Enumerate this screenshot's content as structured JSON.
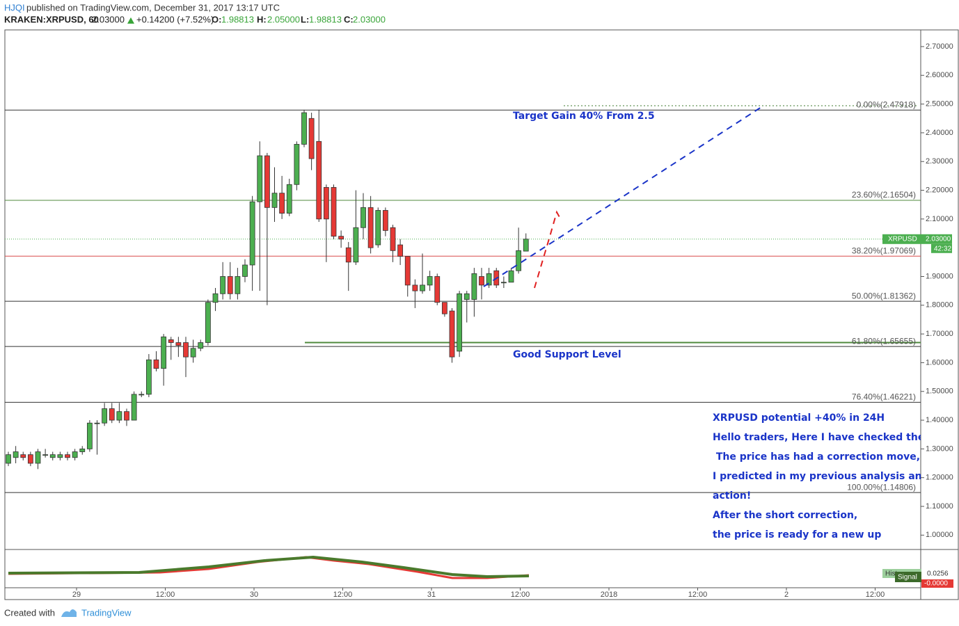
{
  "header": {
    "user": "HJQI",
    "published": "published on TradingView.com, December 31, 2017 13:17 UTC",
    "symbol": "KRAKEN:XRPUSD, 60",
    "last": "2.03000",
    "change": "+0.14200 (+7.52%)",
    "o_label": "O:",
    "o": "1.98813",
    "h_label": "H:",
    "h": "2.05000",
    "l_label": "L:",
    "l": "1.98813",
    "c_label": "C:",
    "c": "2.03000"
  },
  "chart_data": {
    "type": "candlestick",
    "up_color": "#4caf50",
    "down_color": "#e53935",
    "ylim": [
      0.95,
      2.758
    ],
    "yticks": [
      {
        "value": 1.0,
        "label": "1.00000"
      },
      {
        "value": 1.1,
        "label": "1.10000"
      },
      {
        "value": 1.2,
        "label": "1.20000"
      },
      {
        "value": 1.3,
        "label": "1.30000"
      },
      {
        "value": 1.4,
        "label": "1.40000"
      },
      {
        "value": 1.5,
        "label": "1.50000"
      },
      {
        "value": 1.6,
        "label": "1.60000"
      },
      {
        "value": 1.7,
        "label": "1.70000"
      },
      {
        "value": 1.8,
        "label": "1.80000"
      },
      {
        "value": 1.9,
        "label": "1.90000"
      },
      {
        "value": 2.1,
        "label": "2.10000"
      },
      {
        "value": 2.2,
        "label": "2.20000"
      },
      {
        "value": 2.3,
        "label": "2.30000"
      },
      {
        "value": 2.4,
        "label": "2.40000"
      },
      {
        "value": 2.5,
        "label": "2.50000"
      },
      {
        "value": 2.6,
        "label": "2.60000"
      },
      {
        "value": 2.7,
        "label": "2.70000"
      }
    ],
    "x_axis_labels": [
      "29",
      "12:00",
      "30",
      "12:00",
      "31",
      "12:00",
      "2018",
      "12:00",
      "2",
      "12:00"
    ],
    "series": {
      "open": [
        1.25,
        1.27,
        1.28,
        1.28,
        1.25,
        1.28,
        1.27,
        1.27,
        1.28,
        1.27,
        1.29,
        1.3,
        1.39,
        1.39,
        1.44,
        1.4,
        1.43,
        1.4,
        1.49,
        1.49,
        1.61,
        1.58,
        1.68,
        1.67,
        1.67,
        1.62,
        1.65,
        1.67,
        1.81,
        1.84,
        1.9,
        1.84,
        1.9,
        1.94,
        2.16,
        2.32,
        2.14,
        2.19,
        2.12,
        2.22,
        2.36,
        2.45,
        2.37,
        2.21,
        2.21,
        2.04,
        2.0,
        1.95,
        2.07,
        2.14,
        2.01,
        2.13,
        2.07,
        2.01,
        1.97,
        1.87,
        1.85,
        1.87,
        1.9,
        1.81,
        1.78,
        1.64,
        1.82,
        1.82,
        1.9,
        1.87,
        1.92,
        1.88,
        1.88,
        1.92,
        1.98813
      ],
      "high": [
        1.29,
        1.31,
        1.29,
        1.29,
        1.3,
        1.3,
        1.29,
        1.29,
        1.29,
        1.3,
        1.31,
        1.4,
        1.4,
        1.46,
        1.46,
        1.46,
        1.44,
        1.5,
        1.5,
        1.63,
        1.64,
        1.7,
        1.69,
        1.69,
        1.69,
        1.68,
        1.68,
        1.82,
        1.86,
        1.95,
        1.95,
        1.93,
        1.96,
        2.18,
        2.37,
        2.33,
        2.28,
        2.25,
        2.24,
        2.37,
        2.48,
        2.47,
        2.48,
        2.22,
        2.22,
        2.06,
        2.02,
        2.2,
        2.19,
        2.18,
        2.14,
        2.14,
        2.08,
        2.03,
        1.97,
        1.89,
        1.98,
        1.92,
        1.91,
        1.81,
        1.79,
        1.85,
        1.85,
        1.93,
        1.93,
        1.93,
        1.93,
        1.9,
        1.93,
        2.07,
        2.05
      ],
      "low": [
        1.24,
        1.25,
        1.26,
        1.24,
        1.23,
        1.27,
        1.26,
        1.26,
        1.26,
        1.26,
        1.28,
        1.29,
        1.28,
        1.38,
        1.39,
        1.39,
        1.38,
        1.4,
        1.48,
        1.48,
        1.57,
        1.52,
        1.61,
        1.62,
        1.55,
        1.6,
        1.64,
        1.66,
        1.78,
        1.82,
        1.82,
        1.82,
        1.88,
        1.85,
        1.85,
        1.8,
        2.09,
        2.1,
        2.11,
        2.2,
        2.35,
        2.27,
        2.09,
        1.95,
        2.03,
        2.0,
        1.85,
        1.94,
        2.03,
        1.98,
        2.0,
        2.04,
        1.95,
        1.94,
        1.83,
        1.79,
        1.84,
        1.85,
        1.8,
        1.76,
        1.6,
        1.62,
        1.74,
        1.76,
        1.82,
        1.86,
        1.86,
        1.86,
        1.88,
        1.91,
        1.98813
      ],
      "close": [
        1.28,
        1.29,
        1.27,
        1.25,
        1.29,
        1.28,
        1.28,
        1.28,
        1.27,
        1.29,
        1.3,
        1.39,
        1.39,
        1.44,
        1.4,
        1.43,
        1.4,
        1.49,
        1.49,
        1.61,
        1.58,
        1.69,
        1.67,
        1.66,
        1.62,
        1.65,
        1.67,
        1.81,
        1.84,
        1.9,
        1.84,
        1.9,
        1.94,
        2.16,
        2.32,
        2.14,
        2.19,
        2.12,
        2.22,
        2.36,
        2.47,
        2.31,
        2.1,
        2.1,
        2.04,
        2.03,
        1.95,
        2.07,
        2.14,
        2.0,
        2.13,
        2.06,
        1.99,
        1.97,
        1.87,
        1.85,
        1.87,
        1.9,
        1.81,
        1.77,
        1.62,
        1.84,
        1.84,
        1.91,
        1.87,
        1.91,
        1.87,
        1.88,
        1.92,
        1.99,
        2.03
      ]
    },
    "fib_levels": [
      {
        "label": "0.00%(2.47918)",
        "value": 2.47918,
        "color": "#333333"
      },
      {
        "label": "23.60%(2.16504)",
        "value": 2.16504,
        "color": "#4f8a3c"
      },
      {
        "label": "38.20%(1.97069)",
        "value": 1.97069,
        "color": "#d94a4a"
      },
      {
        "label": "50.00%(1.81362)",
        "value": 1.81362,
        "color": "#333333"
      },
      {
        "label": "61.80%(1.65655)",
        "value": 1.65655,
        "color": "#333333"
      },
      {
        "label": "76.40%(1.46221)",
        "value": 1.46221,
        "color": "#333333"
      },
      {
        "label": "100.00%(1.14806)",
        "value": 1.14806,
        "color": "#333333"
      }
    ],
    "support_value": 1.67,
    "last_price": 2.03,
    "badge": {
      "symbol": "XRPUSD",
      "price": "2.03000",
      "countdown": "42:32"
    },
    "annotations": {
      "target": "Target Gain 40% From 2.5",
      "support": "Good Support Level",
      "note": [
        "XRPUSD potential +40% in 24H",
        "Hello traders, Here I have checked the",
        " The price has had a correction move,",
        "I predicted in my previous analysis an",
        "action!",
        "After the short correction,",
        "the price is ready for a new up"
      ]
    },
    "macd": {
      "hist_label": "Hist",
      "hist_value": "0.0256",
      "signal_label": "Signal",
      "signal_value": "-0.0000"
    }
  },
  "footer": {
    "created": "Created with",
    "brand": "TradingView"
  }
}
